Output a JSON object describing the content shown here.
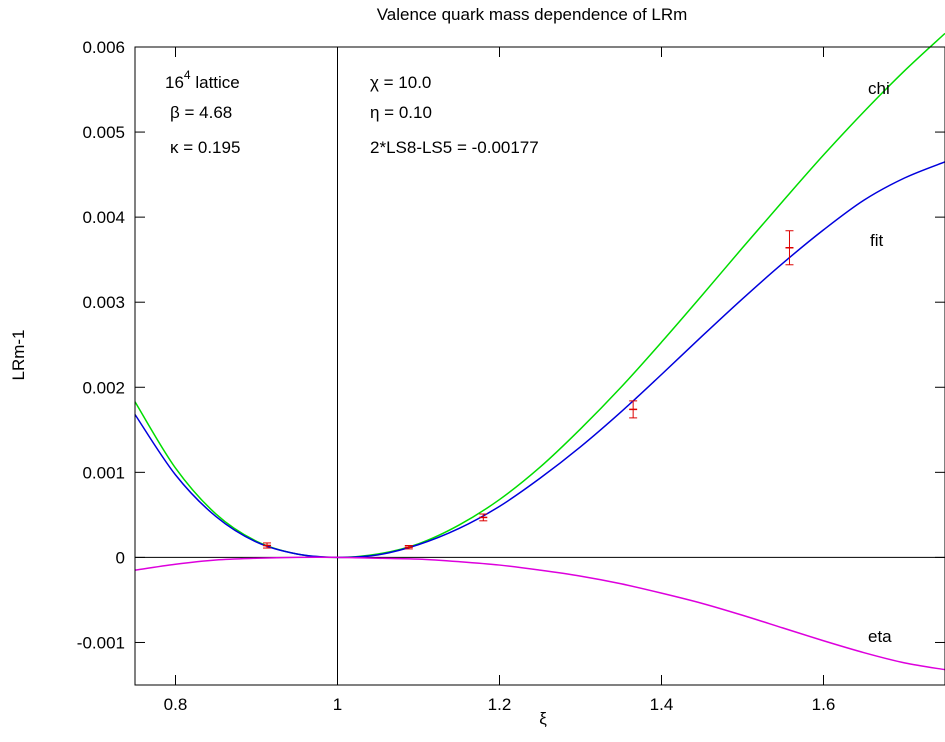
{
  "chart_data": {
    "type": "line",
    "title": "Valence quark mass dependence of LRm",
    "xlabel": "ξ",
    "ylabel": "LRm-1",
    "xlim": [
      0.75,
      1.75
    ],
    "ylim": [
      -0.0015,
      0.006
    ],
    "x_ticks": [
      0.8,
      1,
      1.2,
      1.4,
      1.6
    ],
    "x_tick_labels": [
      "0.8",
      "1",
      "1.2",
      "1.4",
      "1.6"
    ],
    "y_ticks": [
      -0.001,
      0,
      0.001,
      0.002,
      0.003,
      0.004,
      0.005,
      0.006
    ],
    "y_tick_labels": [
      "-0.001",
      "0",
      "0.001",
      "0.002",
      "0.003",
      "0.004",
      "0.005",
      "0.006"
    ],
    "grid": false,
    "zero_lines": true,
    "series": [
      {
        "name": "chi",
        "color": "#00dd00",
        "x": [
          0.75,
          0.8,
          0.85,
          0.9,
          0.95,
          1.0,
          1.05,
          1.1,
          1.15,
          1.2,
          1.25,
          1.3,
          1.35,
          1.4,
          1.45,
          1.5,
          1.55,
          1.6,
          1.65,
          1.7,
          1.75
        ],
        "values": [
          0.00183,
          0.00105,
          0.00051,
          0.00019,
          4e-05,
          0.0,
          4e-05,
          0.00016,
          0.00038,
          0.00068,
          0.00106,
          0.00151,
          0.002,
          0.00253,
          0.00308,
          0.00364,
          0.00419,
          0.00473,
          0.00524,
          0.00572,
          0.00616
        ]
      },
      {
        "name": "fit",
        "color": "#0000dd",
        "x": [
          0.75,
          0.8,
          0.85,
          0.9,
          0.95,
          1.0,
          1.05,
          1.1,
          1.15,
          1.2,
          1.25,
          1.3,
          1.35,
          1.4,
          1.45,
          1.5,
          1.55,
          1.6,
          1.65,
          1.7,
          1.75
        ],
        "values": [
          0.00168,
          0.00097,
          0.00048,
          0.00018,
          4e-05,
          0.0,
          3e-05,
          0.00015,
          0.00034,
          0.0006,
          0.00093,
          0.0013,
          0.00171,
          0.00215,
          0.0026,
          0.00304,
          0.00346,
          0.00385,
          0.0042,
          0.00446,
          0.00465
        ]
      },
      {
        "name": "eta",
        "color": "#dd00dd",
        "x": [
          0.75,
          0.8,
          0.85,
          0.9,
          0.95,
          1.0,
          1.05,
          1.1,
          1.15,
          1.2,
          1.25,
          1.3,
          1.35,
          1.4,
          1.45,
          1.5,
          1.55,
          1.6,
          1.65,
          1.7,
          1.75
        ],
        "values": [
          -0.00015,
          -8e-05,
          -3e-05,
          -1e-05,
          0.0,
          0.0,
          -1e-05,
          -2e-05,
          -5e-05,
          -9e-05,
          -0.00015,
          -0.00022,
          -0.00031,
          -0.00042,
          -0.00054,
          -0.00068,
          -0.00083,
          -0.00098,
          -0.00112,
          -0.00124,
          -0.00132
        ]
      }
    ],
    "data_points": {
      "color": "#dd0000",
      "points": [
        {
          "x": 0.913,
          "y": 0.00014,
          "err": 3e-05
        },
        {
          "x": 1.088,
          "y": 0.00012,
          "err": 2e-05
        },
        {
          "x": 1.18,
          "y": 0.00047,
          "err": 4e-05
        },
        {
          "x": 1.365,
          "y": 0.00174,
          "err": 0.0001
        },
        {
          "x": 1.558,
          "y": 0.00364,
          "err": 0.0002
        }
      ]
    },
    "annotations": {
      "left": {
        "lattice_base": "16",
        "lattice_exp": "4",
        "lattice_suffix": " lattice",
        "beta": "β = 4.68",
        "kappa": "κ = 0.195"
      },
      "right": {
        "chi_param": "χ = 10.0",
        "eta_param": "η = 0.10",
        "ls": "2*LS8-LS5 = -0.00177"
      },
      "curve_labels": {
        "chi": "chi",
        "fit": "fit",
        "eta": "eta"
      }
    }
  }
}
